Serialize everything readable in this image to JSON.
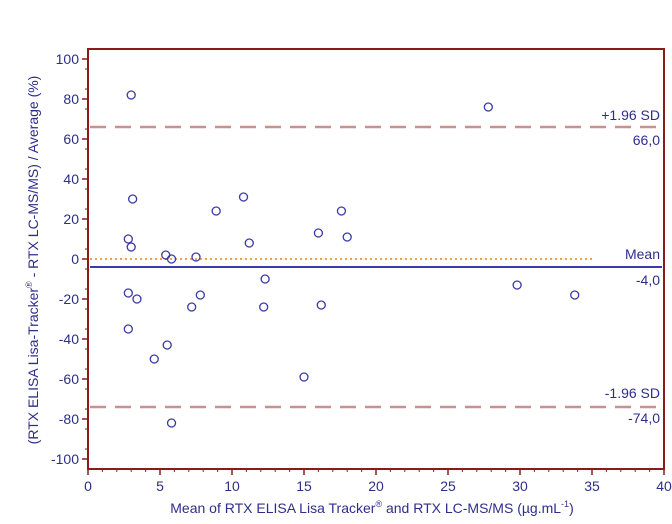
{
  "chart_data": {
    "type": "scatter",
    "title": "",
    "xlabel_main": "Mean of RTX ELISA Lisa Tracker",
    "xlabel_sup1": "®",
    "xlabel_mid": " and RTX LC-MS/MS (µg.mL",
    "xlabel_sup2": "-1",
    "xlabel_end": ")",
    "ylabel_main": "(RTX ELISA Lisa-Tracker",
    "ylabel_sup": "®",
    "ylabel_end": " - RTX LC-MS/MS) / Average (%)",
    "xlim": [
      0,
      40
    ],
    "ylim": [
      -105,
      105
    ],
    "x_ticks": [
      0,
      5,
      10,
      15,
      20,
      25,
      30,
      35,
      40
    ],
    "y_ticks": [
      100,
      80,
      60,
      40,
      20,
      0,
      -20,
      -40,
      -60,
      -80,
      -100
    ],
    "grid": false,
    "colors": {
      "axis_frame": "#8b1a1a",
      "points": "#3a3aa8",
      "mean_line": "#3a3aa8",
      "sd_lines": "#c89090",
      "zero_line": "#f0a050",
      "label_text": "#2e2e8a"
    },
    "reference_lines": {
      "upper": {
        "label": "+1.96 SD",
        "value_label": "66,0",
        "value": 66.0
      },
      "mean": {
        "label": "Mean",
        "value_label": "-4,0",
        "value": -4.0
      },
      "lower": {
        "label": "-1.96 SD",
        "value_label": "-74,0",
        "value": -74.0
      },
      "zero": {
        "value": 0
      }
    },
    "series": [
      {
        "points": [
          [
            3.0,
            82
          ],
          [
            3.1,
            30
          ],
          [
            2.8,
            10
          ],
          [
            3.0,
            6
          ],
          [
            2.8,
            -17
          ],
          [
            3.4,
            -20
          ],
          [
            2.8,
            -35
          ],
          [
            5.4,
            2
          ],
          [
            5.8,
            0
          ],
          [
            4.6,
            -50
          ],
          [
            5.5,
            -43
          ],
          [
            5.8,
            -82
          ],
          [
            7.5,
            1
          ],
          [
            7.2,
            -24
          ],
          [
            7.8,
            -18
          ],
          [
            8.9,
            24
          ],
          [
            10.8,
            31
          ],
          [
            11.2,
            8
          ],
          [
            12.3,
            -10
          ],
          [
            12.2,
            -24
          ],
          [
            15.0,
            -59
          ],
          [
            16.0,
            13
          ],
          [
            16.2,
            -23
          ],
          [
            17.6,
            24
          ],
          [
            18.0,
            11
          ],
          [
            27.8,
            76
          ],
          [
            29.8,
            -13
          ],
          [
            33.8,
            -18
          ]
        ]
      }
    ]
  }
}
